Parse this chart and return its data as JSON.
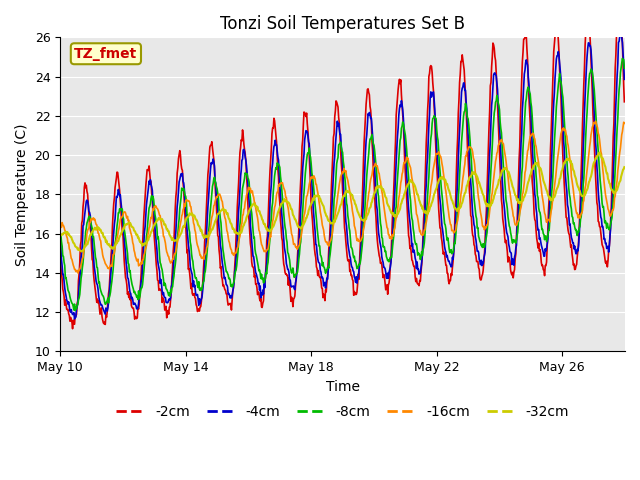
{
  "title": "Tonzi Soil Temperatures Set B",
  "xlabel": "Time",
  "ylabel": "Soil Temperature (C)",
  "ylim": [
    10,
    26
  ],
  "xtick_labels": [
    "May 10",
    "May 14",
    "May 18",
    "May 22",
    "May 26"
  ],
  "ytick_vals": [
    10,
    12,
    14,
    16,
    18,
    20,
    22,
    24,
    26
  ],
  "series": [
    {
      "label": "-2cm",
      "color": "#dd0000",
      "linewidth": 1.2
    },
    {
      "label": "-4cm",
      "color": "#0000cc",
      "linewidth": 1.2
    },
    {
      "label": "-8cm",
      "color": "#00bb00",
      "linewidth": 1.2
    },
    {
      "label": "-16cm",
      "color": "#ff8800",
      "linewidth": 1.2
    },
    {
      "label": "-32cm",
      "color": "#cccc00",
      "linewidth": 1.5
    }
  ],
  "annotation_text": "TZ_fmet",
  "plot_bg": "#e8e8e8",
  "legend_ncol": 5
}
